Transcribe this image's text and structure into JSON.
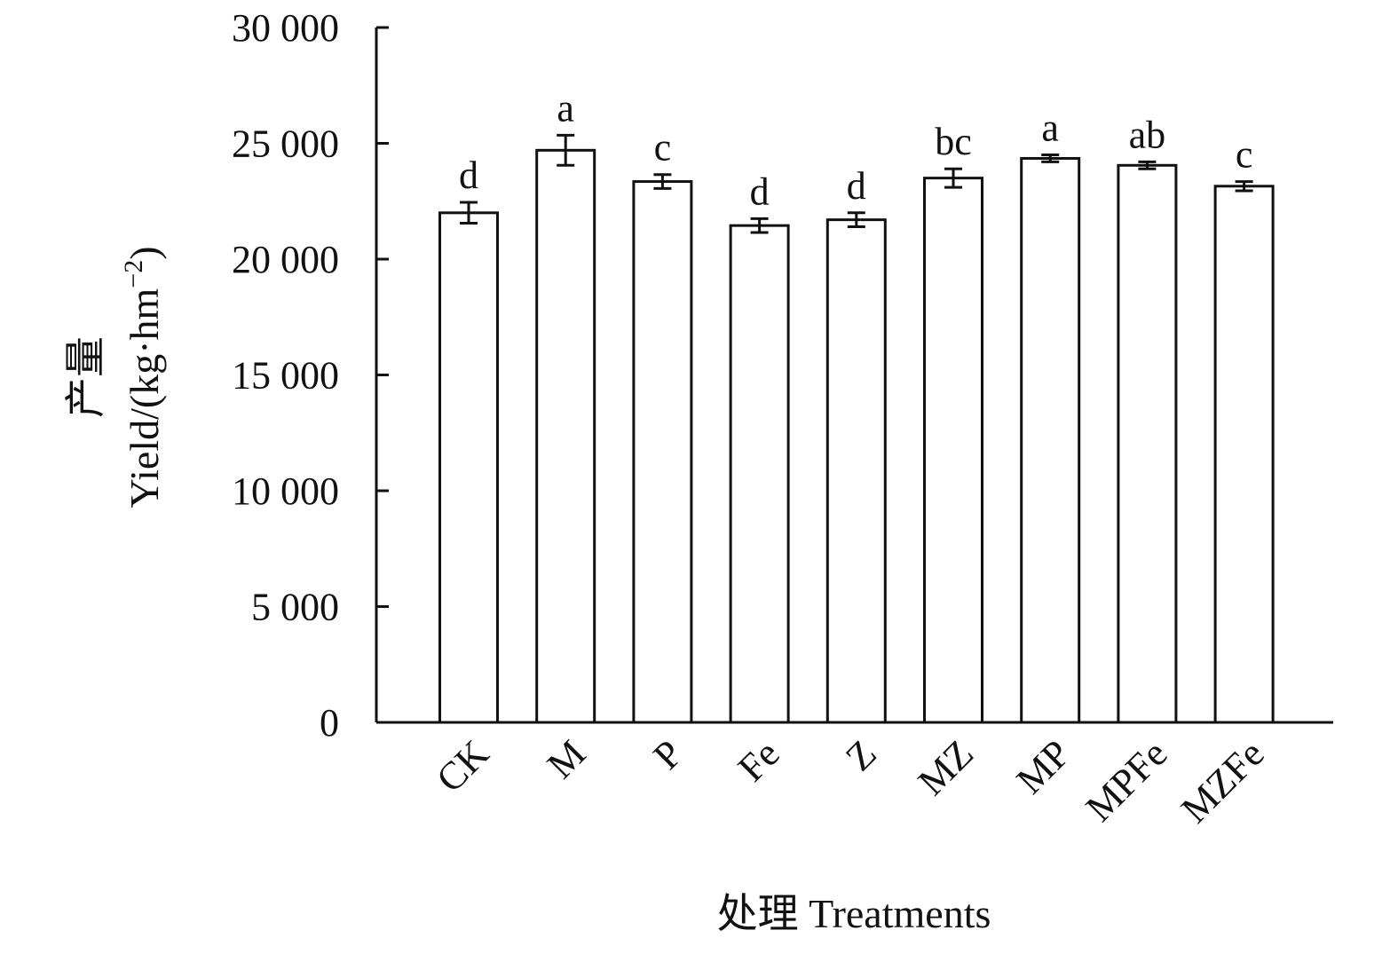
{
  "chart_data": {
    "type": "bar",
    "categories": [
      "CK",
      "M",
      "P",
      "Fe",
      "Z",
      "MZ",
      "MP",
      "MPFe",
      "MZFe"
    ],
    "series": [
      {
        "values": [
          22000,
          24700,
          23350,
          21450,
          21700,
          23500,
          24350,
          24050,
          23150
        ],
        "errors": [
          450,
          650,
          300,
          300,
          300,
          400,
          150,
          150,
          200
        ],
        "significance": [
          "d",
          "a",
          "c",
          "d",
          "d",
          "bc",
          "a",
          "ab",
          "c"
        ]
      }
    ],
    "ylim": [
      0,
      30000
    ],
    "yticks": [
      0,
      5000,
      10000,
      15000,
      20000,
      25000,
      30000
    ],
    "ytick_labels": [
      "0",
      "5 000",
      "10 000",
      "15 000",
      "20 000",
      "25 000",
      "30 000"
    ],
    "ylabel_cn": "产量",
    "ylabel_en": "Yield/(kg·hm",
    "ylabel_sup": "−2",
    "ylabel_end": ")",
    "xlabel": "处理 Treatments",
    "colors": {
      "bar_fill": "#ffffff",
      "stroke": "#111111"
    },
    "grid": false,
    "legend": "none"
  }
}
